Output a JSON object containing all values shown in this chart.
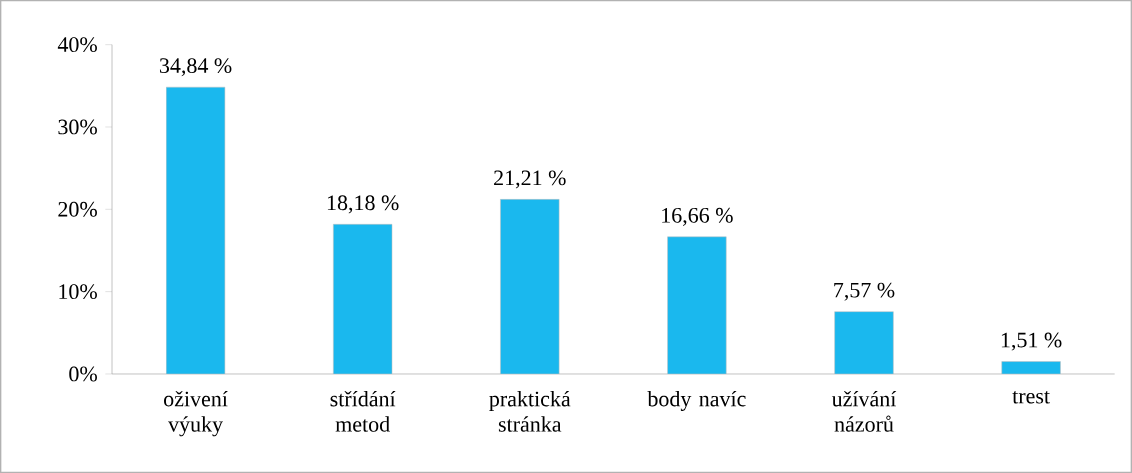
{
  "chart_data": {
    "type": "bar",
    "categories": [
      "oživení výuky",
      "střídání metod",
      "praktická stránka",
      "body navíc",
      "užívání názorů",
      "trest"
    ],
    "values": [
      34.84,
      18.18,
      21.21,
      16.66,
      7.57,
      1.51
    ],
    "value_labels": [
      "34,84 %",
      "18,18 %",
      "21,21 %",
      "16,66 %",
      "7,57 %",
      "1,51 %"
    ],
    "color": "#1ab8ee",
    "ylim": [
      0,
      40
    ],
    "yticks": [
      {
        "value": 0,
        "label": "0%"
      },
      {
        "value": 10,
        "label": "10%"
      },
      {
        "value": 20,
        "label": "20%"
      },
      {
        "value": 30,
        "label": "30%"
      },
      {
        "value": 40,
        "label": "40%"
      }
    ],
    "grid": false
  }
}
